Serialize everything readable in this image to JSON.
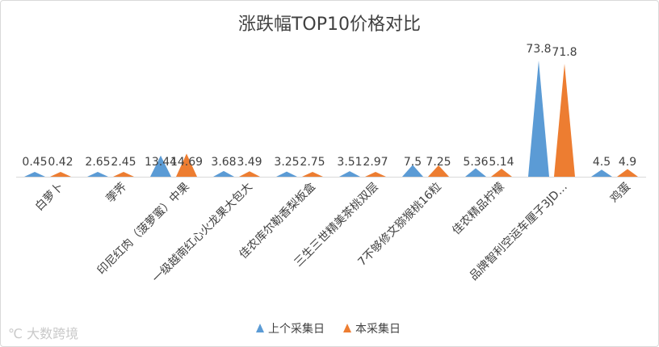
{
  "chart_data": {
    "type": "area",
    "title": "涨跌幅TOP10价格对比",
    "categories": [
      "白萝卜",
      "荸荠",
      "印尼红肉（菠萝蜜）中果",
      "一级越南红心火龙果大包大",
      "佳农库尔勒香梨板盒",
      "三生三世精美茶桃双层",
      "7不够修文猕猴桃16粒",
      "佳农精品柠檬",
      "品牌智利空运车厘子3JD…",
      "鸡蛋"
    ],
    "series": [
      {
        "name": "上个采集日",
        "color": "#5b9bd5",
        "values": [
          0.45,
          2.65,
          13.44,
          3.68,
          3.25,
          3.51,
          7.5,
          5.36,
          73.8,
          4.5
        ]
      },
      {
        "name": "本采集日",
        "color": "#ed7d31",
        "values": [
          0.42,
          2.45,
          14.69,
          3.49,
          2.75,
          2.97,
          7.25,
          5.14,
          71.8,
          4.9
        ]
      }
    ],
    "data_labels": [
      [
        "0.45",
        "2.65",
        "13.44",
        "3.68",
        "3.25",
        "3.51",
        "7.5",
        "5.36",
        "73.8",
        "4.5"
      ],
      [
        "0.42",
        "2.45",
        "14.69",
        "3.49",
        "2.75",
        "2.97",
        "7.25",
        "5.14",
        "71.8",
        "4.9"
      ]
    ],
    "ylim": [
      0,
      80
    ],
    "grid": false,
    "legend": "bottom"
  },
  "watermark": "大数跨境"
}
